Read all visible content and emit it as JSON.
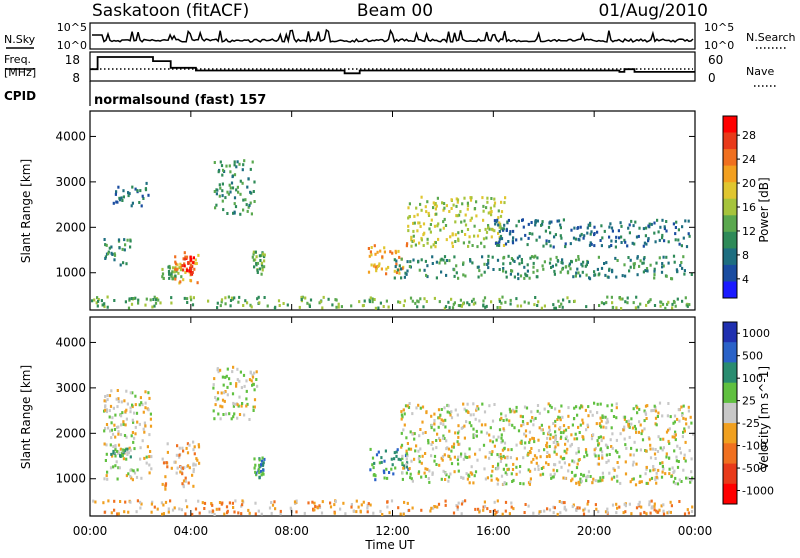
{
  "header": {
    "station": "Saskatoon (fitACF)",
    "beam": "Beam 00",
    "date": "01/Aug/2010"
  },
  "noise_panel": {
    "left_label": "N.Sky",
    "right_label": "N.Search",
    "y_ticks": [
      "10^5",
      "10^0"
    ]
  },
  "freq_panel": {
    "left_label_line1": "Freq.",
    "left_label_line2": "[MHz]",
    "left_ticks": [
      "18",
      "8"
    ],
    "right_label": "Nave",
    "right_ticks": [
      "60",
      "0"
    ]
  },
  "cpid_panel": {
    "label": "CPID",
    "program": "normalsound (fast) 157"
  },
  "chart_data": [
    {
      "type": "heatmap",
      "name": "power",
      "ylabel": "Slant Range [km]",
      "ylim": [
        180,
        4560
      ],
      "y_ticks": [
        "4000",
        "3000",
        "2000",
        "1000"
      ],
      "colorbar": {
        "label": "Power [dB]",
        "ticks": [
          "28",
          "24",
          "20",
          "16",
          "12",
          "8",
          "4"
        ],
        "colors": [
          "#ff0000",
          "#e83a1a",
          "#f07020",
          "#f3a020",
          "#e0c630",
          "#a6c43c",
          "#5aa84e",
          "#2e8a58",
          "#1e6e80",
          "#1a4ca0",
          "#1a1aff"
        ]
      },
      "echo_regions": [
        {
          "t0": 0.9,
          "t1": 2.3,
          "r0": 2500,
          "r1": 3000,
          "level": 2
        },
        {
          "t0": 0.5,
          "t1": 1.6,
          "r0": 1200,
          "r1": 1800,
          "level": 3
        },
        {
          "t0": 2.8,
          "t1": 3.6,
          "r0": 900,
          "r1": 1200,
          "level": 4
        },
        {
          "t0": 3.3,
          "t1": 4.3,
          "r0": 800,
          "r1": 1500,
          "level": 7
        },
        {
          "t0": 3.6,
          "t1": 4.1,
          "r0": 1000,
          "r1": 1400,
          "level": 9
        },
        {
          "t0": 4.9,
          "t1": 6.5,
          "r0": 2300,
          "r1": 3500,
          "level": 3
        },
        {
          "t0": 6.4,
          "t1": 6.9,
          "r0": 1000,
          "r1": 1500,
          "level": 4
        },
        {
          "t0": 11.0,
          "t1": 12.6,
          "r0": 1000,
          "r1": 1700,
          "level": 7
        },
        {
          "t0": 12.5,
          "t1": 16.5,
          "r0": 1600,
          "r1": 2700,
          "level": 5
        },
        {
          "t0": 12.0,
          "t1": 24.0,
          "r0": 900,
          "r1": 1400,
          "level": 3
        },
        {
          "t0": 16.0,
          "t1": 24.0,
          "r0": 1600,
          "r1": 2200,
          "level": 2
        },
        {
          "t0": 0.0,
          "t1": 24.0,
          "r0": 200,
          "r1": 500,
          "level": 4
        }
      ]
    },
    {
      "type": "heatmap",
      "name": "velocity",
      "ylabel": "Slant Range [km]",
      "ylim": [
        180,
        4560
      ],
      "y_ticks": [
        "4000",
        "3000",
        "2000",
        "1000"
      ],
      "colorbar": {
        "label": "Velocity [m s^-1]",
        "ticks": [
          "1000",
          "500",
          "100",
          "25",
          "-25",
          "-100",
          "-500",
          "-1000"
        ],
        "colors": [
          "#2030b0",
          "#2a62c8",
          "#2a8c70",
          "#60c040",
          "#c8c8c8",
          "#f0a020",
          "#f07020",
          "#e83a1a",
          "#ff0000"
        ]
      },
      "echo_regions": [
        {
          "t0": 0.5,
          "t1": 2.4,
          "r0": 1000,
          "r1": 3000,
          "level": 4
        },
        {
          "t0": 0.8,
          "t1": 1.6,
          "r0": 1500,
          "r1": 1700,
          "level": 3
        },
        {
          "t0": 2.8,
          "t1": 4.3,
          "r0": 800,
          "r1": 1900,
          "level": 5
        },
        {
          "t0": 4.8,
          "t1": 6.6,
          "r0": 2300,
          "r1": 3500,
          "level": 4
        },
        {
          "t0": 6.4,
          "t1": 6.9,
          "r0": 1000,
          "r1": 1500,
          "level": 2
        },
        {
          "t0": 11.0,
          "t1": 12.6,
          "r0": 1000,
          "r1": 1700,
          "level": 2
        },
        {
          "t0": 12.3,
          "t1": 24.0,
          "r0": 900,
          "r1": 2700,
          "level": 4
        },
        {
          "t0": 0.0,
          "t1": 24.0,
          "r0": 200,
          "r1": 550,
          "level": 5
        }
      ]
    }
  ],
  "x_axis": {
    "label": "Time UT",
    "ticks": [
      "00:00",
      "04:00",
      "08:00",
      "12:00",
      "16:00",
      "20:00",
      "00:00"
    ]
  }
}
